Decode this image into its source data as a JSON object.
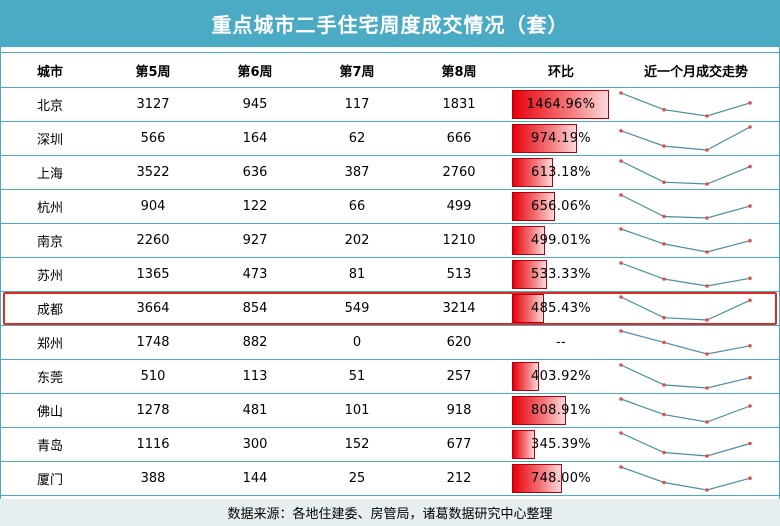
{
  "title": "重点城市二手住宅周度成交情况（套）",
  "footer": "数据来源：各地住建委、房管局，诸葛数据研究中心整理",
  "colors": {
    "header": "#4babc4",
    "bar": "#e8000b",
    "spark_line": "#4a8fa0",
    "spark_point": "#d9534f",
    "highlight": "#e02b22"
  },
  "headers": [
    "城市",
    "第5周",
    "第6周",
    "第7周",
    "第8周",
    "环比",
    "近一个月成交走势"
  ],
  "highlighted_city": "成都",
  "chart_data": {
    "type": "table",
    "columns": [
      "城市",
      "第5周",
      "第6周",
      "第7周",
      "第8周",
      "环比",
      "近一个月成交走势"
    ],
    "rows": [
      {
        "city": "北京",
        "w5": 3127,
        "w6": 945,
        "w7": 117,
        "w8": 1831,
        "ratio_value": 1464.96,
        "ratio": "1464.96%"
      },
      {
        "city": "深圳",
        "w5": 566,
        "w6": 164,
        "w7": 62,
        "w8": 666,
        "ratio_value": 974.19,
        "ratio": "974.19%"
      },
      {
        "city": "上海",
        "w5": 3522,
        "w6": 636,
        "w7": 387,
        "w8": 2760,
        "ratio_value": 613.18,
        "ratio": "613.18%"
      },
      {
        "city": "杭州",
        "w5": 904,
        "w6": 122,
        "w7": 66,
        "w8": 499,
        "ratio_value": 656.06,
        "ratio": "656.06%"
      },
      {
        "city": "南京",
        "w5": 2260,
        "w6": 927,
        "w7": 202,
        "w8": 1210,
        "ratio_value": 499.01,
        "ratio": "499.01%"
      },
      {
        "city": "苏州",
        "w5": 1365,
        "w6": 473,
        "w7": 81,
        "w8": 513,
        "ratio_value": 533.33,
        "ratio": "533.33%"
      },
      {
        "city": "成都",
        "w5": 3664,
        "w6": 854,
        "w7": 549,
        "w8": 3214,
        "ratio_value": 485.43,
        "ratio": "485.43%"
      },
      {
        "city": "郑州",
        "w5": 1748,
        "w6": 882,
        "w7": 0,
        "w8": 620,
        "ratio_value": null,
        "ratio": "--"
      },
      {
        "city": "东莞",
        "w5": 510,
        "w6": 113,
        "w7": 51,
        "w8": 257,
        "ratio_value": 403.92,
        "ratio": "403.92%"
      },
      {
        "city": "佛山",
        "w5": 1278,
        "w6": 481,
        "w7": 101,
        "w8": 918,
        "ratio_value": 808.91,
        "ratio": "808.91%"
      },
      {
        "city": "青岛",
        "w5": 1116,
        "w6": 300,
        "w7": 152,
        "w8": 677,
        "ratio_value": 345.39,
        "ratio": "345.39%"
      },
      {
        "city": "厦门",
        "w5": 388,
        "w6": 144,
        "w7": 25,
        "w8": 212,
        "ratio_value": 748.0,
        "ratio": "748.00%"
      }
    ]
  }
}
